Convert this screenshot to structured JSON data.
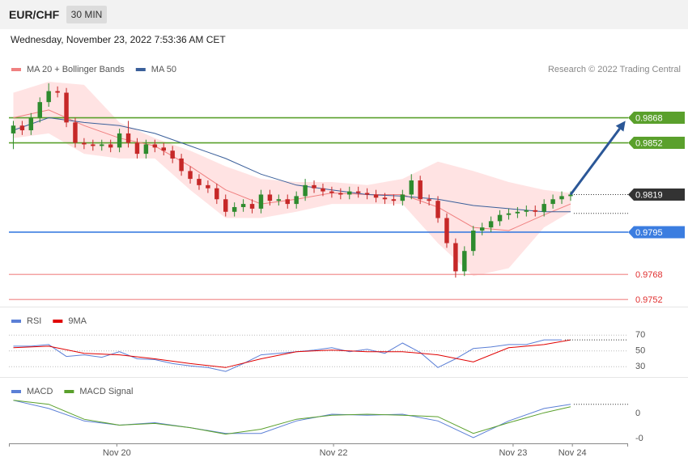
{
  "header": {
    "symbol": "EUR/CHF",
    "interval": "30 MIN",
    "timestamp": "Wednesday, November 23, 2022 7:53:36 AM CET"
  },
  "chart_data": [
    {
      "type": "candlestick",
      "credit": "Research © 2022 Trading Central",
      "xlim": [
        -0.5,
        69.5
      ],
      "ylim": [
        0.9748,
        0.9907
      ],
      "up_color": "#2e8b2e",
      "down_color": "#c62828",
      "x": [
        0,
        1,
        2,
        3,
        4,
        5,
        6,
        7,
        8,
        9,
        10,
        11,
        12,
        13,
        14,
        15,
        16,
        17,
        18,
        19,
        20,
        21,
        22,
        23,
        24,
        25,
        26,
        27,
        28,
        29,
        30,
        31,
        32,
        33,
        34,
        35,
        36,
        37,
        38,
        39,
        40,
        41,
        42,
        43,
        44,
        45,
        46,
        47,
        48,
        49,
        50,
        51,
        52,
        53,
        54,
        55,
        56,
        57,
        58,
        59,
        60,
        61,
        62,
        63
      ],
      "open": [
        0.9858,
        0.9863,
        0.986,
        0.9868,
        0.9878,
        0.9885,
        0.9884,
        0.9865,
        0.9852,
        0.9851,
        0.985,
        0.9851,
        0.9849,
        0.9858,
        0.9852,
        0.9845,
        0.9851,
        0.9849,
        0.9847,
        0.9842,
        0.9834,
        0.9829,
        0.9825,
        0.9823,
        0.9816,
        0.9808,
        0.9811,
        0.9813,
        0.981,
        0.9819,
        0.9815,
        0.9816,
        0.9813,
        0.9818,
        0.9825,
        0.9823,
        0.9821,
        0.982,
        0.9819,
        0.9821,
        0.982,
        0.9819,
        0.9817,
        0.9816,
        0.9815,
        0.9819,
        0.9828,
        0.9816,
        0.9815,
        0.9804,
        0.9788,
        0.977,
        0.9783,
        0.9796,
        0.9798,
        0.9802,
        0.9806,
        0.9807,
        0.9808,
        0.9809,
        0.9808,
        0.9813,
        0.9816,
        0.9818
      ],
      "high": [
        0.9866,
        0.9866,
        0.9871,
        0.9881,
        0.989,
        0.9888,
        0.9887,
        0.9868,
        0.9855,
        0.9854,
        0.9854,
        0.9854,
        0.9861,
        0.9866,
        0.9855,
        0.9854,
        0.9854,
        0.9852,
        0.985,
        0.9845,
        0.9837,
        0.9832,
        0.9828,
        0.9826,
        0.9819,
        0.9814,
        0.9816,
        0.9816,
        0.9822,
        0.9822,
        0.9819,
        0.9819,
        0.9821,
        0.9829,
        0.9828,
        0.9826,
        0.9824,
        0.9823,
        0.9824,
        0.9824,
        0.9823,
        0.9822,
        0.982,
        0.9819,
        0.9822,
        0.9832,
        0.9831,
        0.9819,
        0.9818,
        0.9807,
        0.9791,
        0.9786,
        0.9799,
        0.9801,
        0.9805,
        0.9809,
        0.981,
        0.9811,
        0.9812,
        0.9812,
        0.9816,
        0.9819,
        0.9821,
        0.9821
      ],
      "low": [
        0.9848,
        0.9857,
        0.9857,
        0.9865,
        0.9875,
        0.9881,
        0.9862,
        0.9849,
        0.9848,
        0.9847,
        0.9847,
        0.9846,
        0.9846,
        0.9849,
        0.9842,
        0.9842,
        0.9846,
        0.9844,
        0.9839,
        0.9831,
        0.9826,
        0.9822,
        0.982,
        0.9813,
        0.9805,
        0.9805,
        0.9808,
        0.9807,
        0.9807,
        0.9812,
        0.9812,
        0.981,
        0.981,
        0.9815,
        0.982,
        0.9818,
        0.9817,
        0.9816,
        0.9816,
        0.9817,
        0.9816,
        0.9814,
        0.9813,
        0.9812,
        0.9812,
        0.9816,
        0.9813,
        0.9812,
        0.9801,
        0.9785,
        0.9766,
        0.9767,
        0.978,
        0.9793,
        0.9795,
        0.9799,
        0.9803,
        0.9804,
        0.9805,
        0.9805,
        0.9805,
        0.981,
        0.9813,
        0.9815
      ],
      "close": [
        0.9863,
        0.986,
        0.9868,
        0.9878,
        0.9885,
        0.9884,
        0.9865,
        0.9852,
        0.9851,
        0.985,
        0.9851,
        0.9849,
        0.9858,
        0.9852,
        0.9845,
        0.9851,
        0.9849,
        0.9847,
        0.9842,
        0.9834,
        0.9829,
        0.9825,
        0.9823,
        0.9816,
        0.9808,
        0.9811,
        0.9813,
        0.981,
        0.9819,
        0.9815,
        0.9816,
        0.9813,
        0.9818,
        0.9825,
        0.9823,
        0.9821,
        0.982,
        0.9819,
        0.9821,
        0.982,
        0.9819,
        0.9817,
        0.9816,
        0.9815,
        0.9819,
        0.9828,
        0.9816,
        0.9815,
        0.9804,
        0.9788,
        0.977,
        0.9783,
        0.9796,
        0.9798,
        0.9802,
        0.9806,
        0.9807,
        0.9808,
        0.9809,
        0.9808,
        0.9813,
        0.9816,
        0.9818,
        0.9819
      ],
      "series": [
        {
          "name": "MA 20 + Bollinger Bands",
          "color": "#f08080",
          "band_color": "#ffd9d9",
          "x": [
            0,
            4,
            8,
            12,
            16,
            20,
            24,
            28,
            32,
            36,
            40,
            44,
            48,
            52,
            56,
            60,
            63
          ],
          "values": [
            0.9868,
            0.9873,
            0.9863,
            0.9855,
            0.985,
            0.9837,
            0.9822,
            0.9813,
            0.9816,
            0.982,
            0.9819,
            0.9819,
            0.9811,
            0.9798,
            0.9796,
            0.9806,
            0.9813
          ],
          "band_upper": [
            0.9884,
            0.9891,
            0.9889,
            0.9865,
            0.9855,
            0.9847,
            0.9837,
            0.9829,
            0.9827,
            0.9827,
            0.9825,
            0.9829,
            0.984,
            0.9834,
            0.9827,
            0.9822,
            0.982
          ],
          "band_lower": [
            0.9855,
            0.9858,
            0.9845,
            0.9842,
            0.9842,
            0.9822,
            0.9804,
            0.9804,
            0.9808,
            0.9813,
            0.9813,
            0.9813,
            0.9788,
            0.9767,
            0.9772,
            0.9798,
            0.9808
          ]
        },
        {
          "name": "MA 50",
          "color": "#3a5f9a",
          "x": [
            0,
            4,
            8,
            12,
            16,
            20,
            24,
            28,
            32,
            36,
            40,
            44,
            48,
            52,
            56,
            60,
            63
          ],
          "values": [
            0.986,
            0.9868,
            0.9865,
            0.9863,
            0.9858,
            0.985,
            0.9842,
            0.9832,
            0.9825,
            0.9822,
            0.9819,
            0.9818,
            0.9816,
            0.9812,
            0.981,
            0.9808,
            0.9808
          ]
        }
      ],
      "levels": [
        {
          "value": 0.9868,
          "color": "#5aa02c",
          "label_style": "box",
          "line": "solid"
        },
        {
          "value": 0.9852,
          "color": "#5aa02c",
          "label_style": "box",
          "line": "solid"
        },
        {
          "value": 0.9819,
          "color": "#333333",
          "label_style": "box",
          "line": "dotted"
        },
        {
          "value": 0.9795,
          "color": "#3b7de0",
          "label_style": "box",
          "line": "solid"
        },
        {
          "value": 0.9768,
          "color": "#e03030",
          "label_style": "text",
          "line": "solid"
        },
        {
          "value": 0.9752,
          "color": "#e03030",
          "label_style": "text",
          "line": "solid"
        }
      ],
      "dotted_lines": [
        0.9807
      ],
      "arrow": {
        "from": [
          63,
          0.9819
        ],
        "to": [
          69.2,
          0.9866
        ],
        "color": "#2b5797"
      }
    },
    {
      "type": "line",
      "xlim": [
        -0.5,
        69.5
      ],
      "ylim": [
        18,
        104
      ],
      "yticks": [
        70,
        50,
        30
      ],
      "series": [
        {
          "name": "RSI",
          "color": "#5b7fd6",
          "x": [
            0,
            2,
            4,
            6,
            8,
            10,
            12,
            14,
            16,
            18,
            20,
            22,
            24,
            26,
            28,
            30,
            32,
            34,
            36,
            38,
            40,
            42,
            44,
            46,
            48,
            50,
            52,
            54,
            56,
            58,
            60,
            62
          ],
          "values": [
            56,
            56,
            58,
            43,
            45,
            42,
            49,
            40,
            39,
            34,
            31,
            29,
            24,
            34,
            45,
            47,
            49,
            51,
            54,
            49,
            52,
            47,
            60,
            48,
            29,
            40,
            53,
            55,
            58,
            58,
            64,
            64
          ]
        },
        {
          "name": "9MA",
          "color": "#e00000",
          "x": [
            0,
            4,
            8,
            12,
            16,
            20,
            24,
            28,
            32,
            36,
            40,
            44,
            48,
            52,
            56,
            60,
            63
          ],
          "values": [
            54,
            56,
            47,
            45,
            40,
            34,
            29,
            40,
            49,
            51,
            49,
            49,
            45,
            36,
            54,
            58,
            64
          ]
        }
      ]
    },
    {
      "type": "line",
      "xlim": [
        -0.5,
        69.5
      ],
      "ylim": [
        -0.0012,
        0.0014
      ],
      "yticks": [
        0,
        {
          "value": -0.001,
          "label": "-0"
        }
      ],
      "xticks": [
        {
          "value": 11.7,
          "label": "Nov 20"
        },
        {
          "value": 36.2,
          "label": "Nov 22"
        },
        {
          "value": 56.5,
          "label": "Nov 23"
        },
        {
          "value": 63.2,
          "label": "Nov 24"
        }
      ],
      "series": [
        {
          "name": "MACD",
          "color": "#5b7fd6",
          "x": [
            0,
            4,
            8,
            12,
            16,
            20,
            24,
            28,
            32,
            36,
            40,
            44,
            48,
            52,
            56,
            60,
            63
          ],
          "values": [
            0.00053,
            0.0002,
            -0.0003,
            -0.00047,
            -0.00037,
            -0.00057,
            -0.0008,
            -0.0008,
            -0.0003,
            -3e-05,
            -7e-05,
            -3e-05,
            -0.0003,
            -0.00097,
            -0.0003,
            0.0002,
            0.00037
          ]
        },
        {
          "name": "MACD Signal",
          "color": "#5aa02c",
          "x": [
            0,
            4,
            8,
            12,
            16,
            20,
            24,
            28,
            32,
            36,
            40,
            44,
            48,
            52,
            56,
            60,
            63
          ],
          "values": [
            0.00053,
            0.00037,
            -0.00023,
            -0.00047,
            -0.0004,
            -0.00057,
            -0.00083,
            -0.00063,
            -0.00023,
            -7e-05,
            -3e-05,
            -7e-05,
            -0.00013,
            -0.0008,
            -0.00037,
            3e-05,
            0.00027
          ]
        }
      ]
    }
  ]
}
